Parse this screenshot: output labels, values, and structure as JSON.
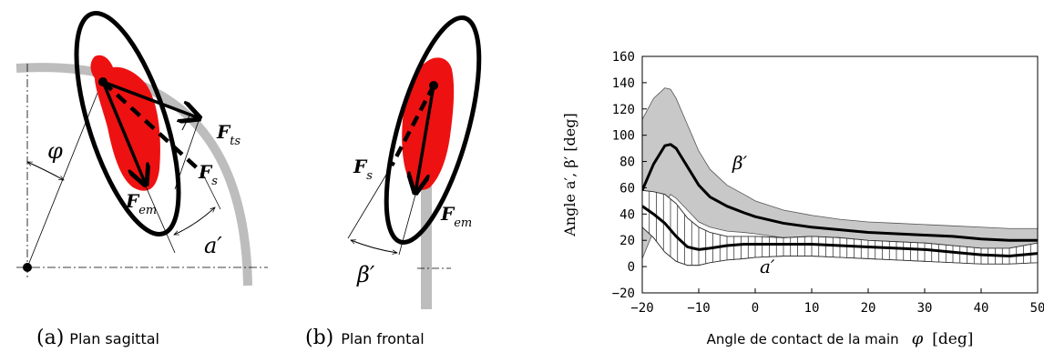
{
  "figures": {
    "a": {
      "caption_letter": "(a)",
      "caption_text": "Plan sagittal",
      "phi_label": "φ",
      "alpha_label": "a′",
      "force_ts_main": "F",
      "force_ts_sub": "ts",
      "force_s_main": "F",
      "force_s_sub": "s",
      "force_em_main": "F",
      "force_em_sub": "em"
    },
    "b": {
      "caption_letter": "(b)",
      "caption_text": "Plan frontal",
      "beta_label": "β′",
      "force_s_main": "F",
      "force_s_sub": "s",
      "force_em_main": "F",
      "force_em_sub": "em"
    }
  },
  "colors": {
    "limb": "#ee1111",
    "beta_band": "#c8c8c8",
    "guide": "#bdbdbd",
    "line": "#000000"
  },
  "chart_data": {
    "type": "line",
    "xlabel_text": "Angle de contact de la main",
    "xlabel_symbol": "φ",
    "xlabel_unit": "[deg]",
    "ylabel": "Angle a′, β′ [deg]",
    "xlim": [
      -20,
      50
    ],
    "ylim": [
      -20,
      160
    ],
    "xticks": [
      -20,
      -10,
      0,
      10,
      20,
      30,
      40,
      50
    ],
    "yticks": [
      -20,
      0,
      20,
      40,
      60,
      80,
      100,
      120,
      140,
      160
    ],
    "grid": false,
    "annotations": [
      "β′",
      "a′"
    ],
    "series": [
      {
        "name": "β′",
        "style": "thick-line-gray-band",
        "x": [
          -20,
          -18,
          -16,
          -15,
          -14,
          -12,
          -10,
          -8,
          -5,
          -2,
          0,
          5,
          10,
          15,
          20,
          25,
          30,
          35,
          40,
          45,
          50
        ],
        "mean": [
          58,
          78,
          92,
          93,
          90,
          76,
          62,
          53,
          46,
          41,
          38,
          33,
          30,
          28,
          26,
          25,
          24,
          23,
          21,
          20,
          20
        ],
        "upper": [
          112,
          128,
          136,
          135,
          128,
          108,
          88,
          74,
          62,
          55,
          50,
          43,
          39,
          36,
          34,
          33,
          32,
          31,
          30,
          29,
          29
        ],
        "lower": [
          6,
          27,
          47,
          55,
          52,
          43,
          34,
          30,
          27,
          26,
          25,
          22,
          20,
          18,
          16,
          15,
          14,
          13,
          12,
          11,
          10
        ]
      },
      {
        "name": "a′",
        "style": "thick-line-hatched-band",
        "x": [
          -20,
          -18,
          -16,
          -14,
          -12,
          -10,
          -8,
          -5,
          -2,
          0,
          5,
          10,
          15,
          20,
          25,
          30,
          35,
          40,
          45,
          50
        ],
        "mean": [
          46,
          40,
          33,
          23,
          15,
          13,
          14,
          16,
          17,
          17,
          17,
          17,
          16,
          15,
          14,
          13,
          11,
          9,
          8,
          10
        ],
        "upper": [
          58,
          57,
          55,
          48,
          37,
          30,
          26,
          23,
          23,
          23,
          22,
          23,
          22,
          20,
          19,
          18,
          16,
          14,
          14,
          18
        ],
        "lower": [
          30,
          22,
          11,
          4,
          1,
          1,
          3,
          5,
          6,
          7,
          8,
          8,
          7,
          6,
          5,
          4,
          3,
          2,
          2,
          3
        ]
      }
    ]
  }
}
